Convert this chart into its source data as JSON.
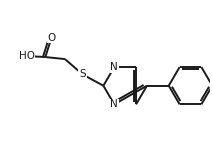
{
  "background_color": "#ffffff",
  "line_color": "#1a1a1a",
  "line_width": 1.4,
  "font_size": 7.5,
  "figsize": [
    2.13,
    1.53
  ],
  "dpi": 100,
  "xlim": [
    0,
    10
  ],
  "ylim": [
    0,
    7.2
  ]
}
